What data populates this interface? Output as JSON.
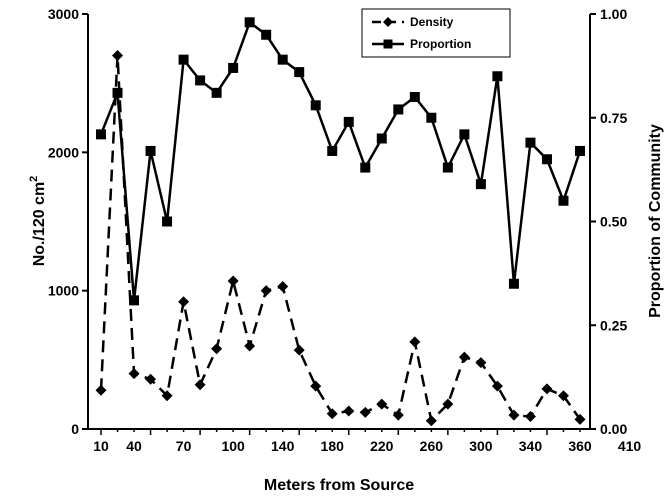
{
  "chart_data": {
    "type": "line",
    "xlabel": "Meters from Source",
    "ylabel_left": "No./120 cm",
    "ylabel_left_superscript": "2",
    "ylabel_right": "Proportion of Community",
    "x_ticks": [
      "10",
      "40",
      "70",
      "100",
      "140",
      "180",
      "220",
      "260",
      "300",
      "340",
      "360",
      "410"
    ],
    "y_left_ticks": [
      "0",
      "1000",
      "2000",
      "3000"
    ],
    "y_right_ticks": [
      "0.00",
      "0.25",
      "0.50",
      "0.75",
      "1.00"
    ],
    "y_left_range": [
      0,
      3000
    ],
    "y_right_range": [
      0,
      1.0
    ],
    "legend_placement": "top-center",
    "series": [
      {
        "name": "Density",
        "axis": "left",
        "line_style": "dashed",
        "marker": "diamond",
        "values": [
          280,
          2700,
          400,
          360,
          240,
          920,
          320,
          580,
          1070,
          600,
          1000,
          1030,
          570,
          310,
          110,
          130,
          120,
          180,
          100,
          630,
          60,
          180,
          520,
          480,
          310,
          100,
          90,
          290,
          240,
          70
        ]
      },
      {
        "name": "Proportion",
        "axis": "right",
        "line_style": "solid",
        "marker": "square",
        "values": [
          0.71,
          0.81,
          0.31,
          0.67,
          0.5,
          0.89,
          0.84,
          0.81,
          0.87,
          0.98,
          0.95,
          0.89,
          0.86,
          0.78,
          0.67,
          0.74,
          0.63,
          0.7,
          0.77,
          0.8,
          0.75,
          0.63,
          0.71,
          0.59,
          0.85,
          0.35,
          0.69,
          0.65,
          0.55,
          0.67
        ]
      }
    ]
  }
}
